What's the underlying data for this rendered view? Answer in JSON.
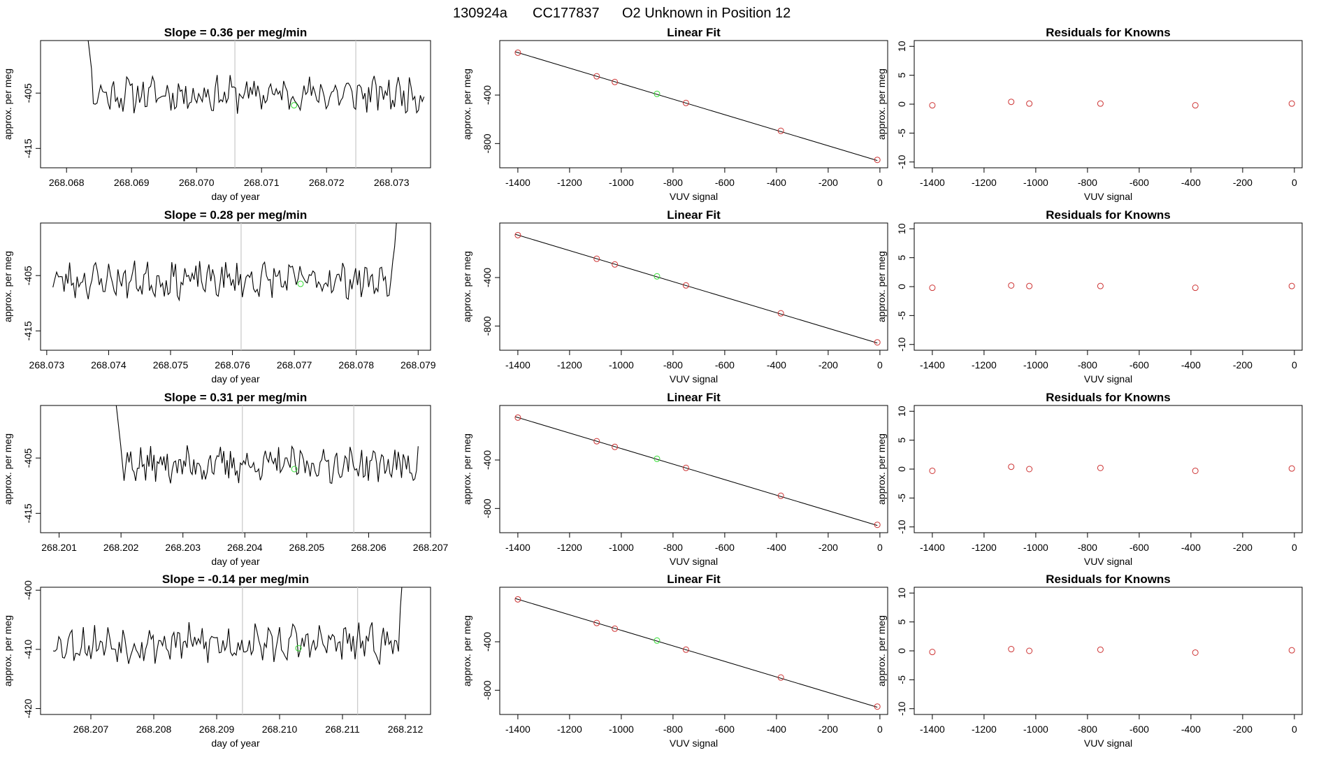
{
  "figure": {
    "run_id": "130924a",
    "tank": "CC177837",
    "description": "O2 Unknown in Position  12"
  },
  "colors": {
    "line": "#000000",
    "gray_marker": "#cccccc",
    "known_point": "#cd3333",
    "unknown_point": "#33dd33"
  },
  "chart_data": [
    {
      "type": "line",
      "row": 1,
      "title": "Slope =  0.36  per meg/min",
      "xlabel": "day of year",
      "ylabel": "approx. per meg",
      "xlim": [
        268.0676,
        268.0736
      ],
      "ylim": [
        -418.5,
        -395.5
      ],
      "xticks": [
        "268.068",
        "268.069",
        "268.070",
        "268.071",
        "268.072",
        "268.073"
      ],
      "yticks": [
        -415,
        -405
      ],
      "x_start": 268.0681,
      "x_end": 268.0735,
      "entry_x": 268.0683,
      "settle_x": 268.0684,
      "base": -405.2,
      "markers": [
        268.07059,
        268.07245
      ],
      "unknown_point": {
        "x": 268.0715,
        "y": -407.2
      },
      "transient": "start",
      "seed": 11
    },
    {
      "type": "scatter",
      "row": 1,
      "title": "Linear Fit",
      "xlabel": "VUV signal",
      "ylabel": "approx. per meg",
      "xlim": [
        -1470,
        30
      ],
      "ylim": [
        -1000,
        50
      ],
      "xticks": [
        -1400,
        -1200,
        -1000,
        -800,
        -600,
        -400,
        -200,
        0
      ],
      "yticks": [
        -400,
        -800
      ],
      "fit": {
        "x": [
          -1410,
          -10
        ],
        "y": [
          -43,
          -940
        ]
      },
      "known_points": [
        {
          "x": -1400,
          "y": -50
        },
        {
          "x": -1095,
          "y": -245
        },
        {
          "x": -1025,
          "y": -292
        },
        {
          "x": -750,
          "y": -465
        },
        {
          "x": -383,
          "y": -695
        },
        {
          "x": -10,
          "y": -935
        }
      ],
      "unknown_point": {
        "x": -862,
        "y": -390
      }
    },
    {
      "type": "scatter",
      "row": 1,
      "title": "Residuals for Knowns",
      "xlabel": "VUV signal",
      "ylabel": "approx. per meg",
      "xlim": [
        -1470,
        30
      ],
      "ylim": [
        -11,
        11
      ],
      "xticks": [
        -1400,
        -1200,
        -1000,
        -800,
        -600,
        -400,
        -200,
        0
      ],
      "yticks": [
        10,
        5,
        0,
        -5,
        -10
      ],
      "points": [
        {
          "x": -1400,
          "y": -0.2
        },
        {
          "x": -1095,
          "y": 0.4
        },
        {
          "x": -1025,
          "y": 0.1
        },
        {
          "x": -750,
          "y": 0.1
        },
        {
          "x": -383,
          "y": -0.2
        },
        {
          "x": -10,
          "y": 0.1
        }
      ]
    },
    {
      "type": "line",
      "row": 2,
      "title": "Slope =  0.28  per meg/min",
      "xlabel": "day of year",
      "ylabel": "approx. per meg",
      "xlim": [
        268.0729,
        268.0792
      ],
      "ylim": [
        -418.5,
        -395.5
      ],
      "xticks": [
        "268.073",
        "268.074",
        "268.075",
        "268.076",
        "268.077",
        "268.078",
        "268.079"
      ],
      "yticks": [
        -415,
        -405
      ],
      "x_start": 268.0731,
      "x_end": 268.0788,
      "entry_x": 268.0787,
      "settle_x": 268.0786,
      "base": -405.8,
      "markers": [
        268.07614,
        268.07799
      ],
      "unknown_point": {
        "x": 268.0771,
        "y": -406.5
      },
      "transient": "end",
      "seed": 23
    },
    {
      "type": "scatter",
      "row": 2,
      "title": "Linear Fit",
      "xlabel": "VUV signal",
      "ylabel": "approx. per meg",
      "xlim": [
        -1470,
        30
      ],
      "ylim": [
        -1000,
        50
      ],
      "xticks": [
        -1400,
        -1200,
        -1000,
        -800,
        -600,
        -400,
        -200,
        0
      ],
      "yticks": [
        -400,
        -800
      ],
      "fit": {
        "x": [
          -1410,
          -10
        ],
        "y": [
          -43,
          -940
        ]
      },
      "known_points": [
        {
          "x": -1400,
          "y": -50
        },
        {
          "x": -1095,
          "y": -245
        },
        {
          "x": -1025,
          "y": -292
        },
        {
          "x": -750,
          "y": -465
        },
        {
          "x": -383,
          "y": -695
        },
        {
          "x": -10,
          "y": -935
        }
      ],
      "unknown_point": {
        "x": -862,
        "y": -390
      }
    },
    {
      "type": "scatter",
      "row": 2,
      "title": "Residuals for Knowns",
      "xlabel": "VUV signal",
      "ylabel": "approx. per meg",
      "xlim": [
        -1470,
        30
      ],
      "ylim": [
        -11,
        11
      ],
      "xticks": [
        -1400,
        -1200,
        -1000,
        -800,
        -600,
        -400,
        -200,
        0
      ],
      "yticks": [
        10,
        5,
        0,
        -5,
        -10
      ],
      "points": [
        {
          "x": -1400,
          "y": -0.2
        },
        {
          "x": -1095,
          "y": 0.2
        },
        {
          "x": -1025,
          "y": 0.1
        },
        {
          "x": -750,
          "y": 0.1
        },
        {
          "x": -383,
          "y": -0.2
        },
        {
          "x": -10,
          "y": 0.1
        }
      ]
    },
    {
      "type": "line",
      "row": 3,
      "title": "Slope =  0.31  per meg/min",
      "xlabel": "day of year",
      "ylabel": "approx. per meg",
      "xlim": [
        268.2007,
        268.207
      ],
      "ylim": [
        -418.5,
        -395.5
      ],
      "xticks": [
        "268.201",
        "268.202",
        "268.203",
        "268.204",
        "268.205",
        "268.206",
        "268.207"
      ],
      "yticks": [
        -415,
        -405
      ],
      "x_start": 268.2017,
      "x_end": 268.2068,
      "entry_x": 268.2019,
      "settle_x": 268.202,
      "base": -406.2,
      "markers": [
        268.20396,
        268.20576
      ],
      "unknown_point": {
        "x": 268.2048,
        "y": -407.0
      },
      "transient": "start",
      "seed": 37
    },
    {
      "type": "scatter",
      "row": 3,
      "title": "Linear Fit",
      "xlabel": "VUV signal",
      "ylabel": "approx. per meg",
      "xlim": [
        -1470,
        30
      ],
      "ylim": [
        -1000,
        50
      ],
      "xticks": [
        -1400,
        -1200,
        -1000,
        -800,
        -600,
        -400,
        -200,
        0
      ],
      "yticks": [
        -400,
        -800
      ],
      "fit": {
        "x": [
          -1410,
          -10
        ],
        "y": [
          -43,
          -940
        ]
      },
      "known_points": [
        {
          "x": -1400,
          "y": -50
        },
        {
          "x": -1095,
          "y": -245
        },
        {
          "x": -1025,
          "y": -292
        },
        {
          "x": -750,
          "y": -465
        },
        {
          "x": -383,
          "y": -695
        },
        {
          "x": -10,
          "y": -935
        }
      ],
      "unknown_point": {
        "x": -862,
        "y": -390
      }
    },
    {
      "type": "scatter",
      "row": 3,
      "title": "Residuals for Knowns",
      "xlabel": "VUV signal",
      "ylabel": "approx. per meg",
      "xlim": [
        -1470,
        30
      ],
      "ylim": [
        -11,
        11
      ],
      "xticks": [
        -1400,
        -1200,
        -1000,
        -800,
        -600,
        -400,
        -200,
        0
      ],
      "yticks": [
        10,
        5,
        0,
        -5,
        -10
      ],
      "points": [
        {
          "x": -1400,
          "y": -0.3
        },
        {
          "x": -1095,
          "y": 0.4
        },
        {
          "x": -1025,
          "y": 0.0
        },
        {
          "x": -750,
          "y": 0.2
        },
        {
          "x": -383,
          "y": -0.3
        },
        {
          "x": -10,
          "y": 0.1
        }
      ]
    },
    {
      "type": "line",
      "row": 4,
      "title": "Slope =  -0.14  per meg/min",
      "xlabel": "day of year",
      "ylabel": "approx. per meg",
      "xlim": [
        268.2062,
        268.2124
      ],
      "ylim": [
        -421.0,
        -399.5
      ],
      "xticks": [
        "268.207",
        "268.208",
        "268.209",
        "268.210",
        "268.211",
        "268.212"
      ],
      "yticks": [
        -400,
        -410,
        -420
      ],
      "x_start": 268.2064,
      "x_end": 268.2121,
      "entry_x": 268.212,
      "settle_x": 268.2119,
      "base": -409.0,
      "markers": [
        268.20941,
        268.21124
      ],
      "unknown_point": {
        "x": 268.2103,
        "y": -409.8
      },
      "transient": "end",
      "seed": 53
    },
    {
      "type": "scatter",
      "row": 4,
      "title": "Linear Fit",
      "xlabel": "VUV signal",
      "ylabel": "approx. per meg",
      "xlim": [
        -1470,
        30
      ],
      "ylim": [
        -1000,
        50
      ],
      "xticks": [
        -1400,
        -1200,
        -1000,
        -800,
        -600,
        -400,
        -200,
        0
      ],
      "yticks": [
        -400,
        -800
      ],
      "fit": {
        "x": [
          -1410,
          -10
        ],
        "y": [
          -43,
          -940
        ]
      },
      "known_points": [
        {
          "x": -1400,
          "y": -50
        },
        {
          "x": -1095,
          "y": -245
        },
        {
          "x": -1025,
          "y": -292
        },
        {
          "x": -750,
          "y": -465
        },
        {
          "x": -383,
          "y": -695
        },
        {
          "x": -10,
          "y": -935
        }
      ],
      "unknown_point": {
        "x": -862,
        "y": -390
      }
    },
    {
      "type": "scatter",
      "row": 4,
      "title": "Residuals for Knowns",
      "xlabel": "VUV signal",
      "ylabel": "approx. per meg",
      "xlim": [
        -1470,
        30
      ],
      "ylim": [
        -11,
        11
      ],
      "xticks": [
        -1400,
        -1200,
        -1000,
        -800,
        -600,
        -400,
        -200,
        0
      ],
      "yticks": [
        10,
        5,
        0,
        -5,
        -10
      ],
      "points": [
        {
          "x": -1400,
          "y": -0.2
        },
        {
          "x": -1095,
          "y": 0.3
        },
        {
          "x": -1025,
          "y": 0.0
        },
        {
          "x": -750,
          "y": 0.2
        },
        {
          "x": -383,
          "y": -0.3
        },
        {
          "x": -10,
          "y": 0.1
        }
      ]
    }
  ]
}
